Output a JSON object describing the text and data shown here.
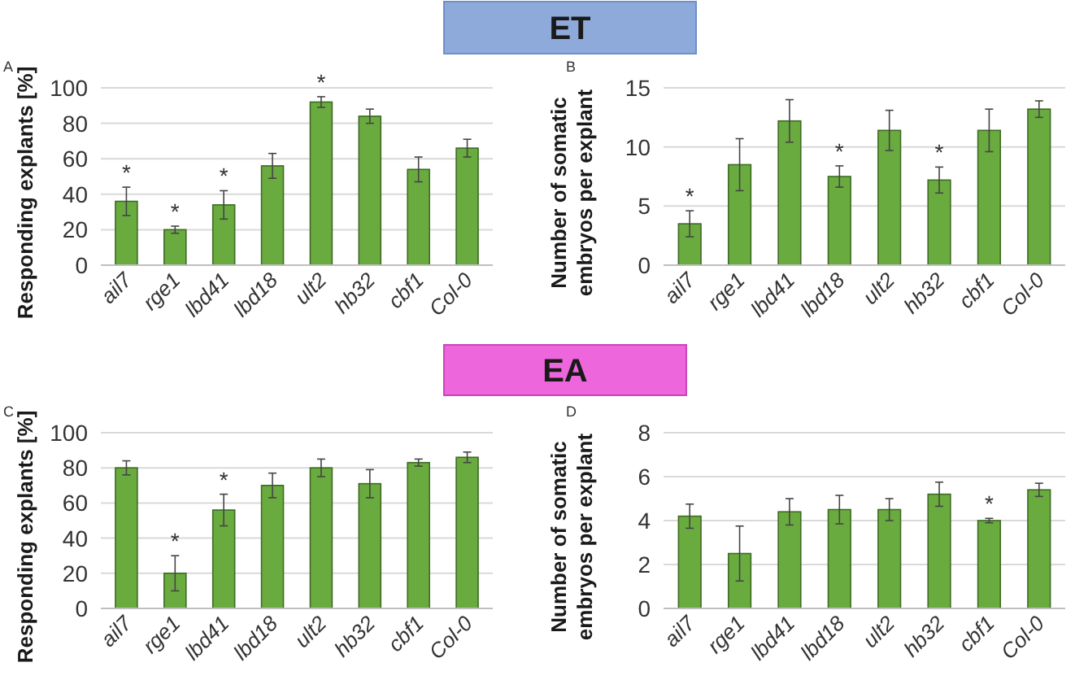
{
  "chart_data": [
    {
      "type": "other",
      "title": "ET"
    },
    {
      "type": "bar",
      "ylabel": "Responding explants [%]",
      "categories": [
        "ail7",
        "rge1",
        "lbd41",
        "lbd18",
        "ult2",
        "hb32",
        "cbf1",
        "Col-0"
      ],
      "values": [
        36,
        20,
        34,
        56,
        92,
        84,
        54,
        66
      ],
      "errors": [
        8,
        2,
        8,
        7,
        3,
        4,
        7,
        5
      ],
      "color": "#6aab3f",
      "ylim": [
        0,
        100
      ],
      "yticks": [
        0,
        20,
        40,
        60,
        80,
        100
      ],
      "grid": "y",
      "annotations": [
        "A",
        {
          "text": "*",
          "x": "ail7",
          "y": 44
        },
        {
          "text": "*",
          "x": "rge1",
          "y": 22
        },
        {
          "text": "*",
          "x": "lbd41",
          "y": 42
        },
        {
          "text": "*",
          "x": "ult2",
          "y": 95
        }
      ]
    },
    {
      "type": "bar",
      "ylabel": "Number of somatic embryos per explant",
      "categories": [
        "ail7",
        "rge1",
        "lbd41",
        "lbd18",
        "ult2",
        "hb32",
        "cbf1",
        "Col-0"
      ],
      "values": [
        3.5,
        8.5,
        12.2,
        7.5,
        11.4,
        7.2,
        11.4,
        13.2
      ],
      "errors": [
        1.1,
        2.2,
        1.8,
        0.9,
        1.7,
        1.1,
        1.8,
        0.7
      ],
      "color": "#6aab3f",
      "ylim": [
        0,
        15
      ],
      "yticks": [
        0,
        5,
        10,
        15
      ],
      "grid": "y",
      "annotations": [
        "B",
        {
          "text": "*",
          "x": "ail7",
          "y": 4.6
        },
        {
          "text": "*",
          "x": "lbd18",
          "y": 8.4
        },
        {
          "text": "*",
          "x": "hb32",
          "y": 8.3
        }
      ]
    },
    {
      "type": "other",
      "title": "EA"
    },
    {
      "type": "bar",
      "ylabel": "Responding explants [%]",
      "categories": [
        "ail7",
        "rge1",
        "lbd41",
        "lbd18",
        "ult2",
        "hb32",
        "cbf1",
        "Col-0"
      ],
      "values": [
        80,
        20,
        56,
        70,
        80,
        71,
        83,
        86
      ],
      "errors": [
        4,
        10,
        9,
        7,
        5,
        8,
        2,
        3
      ],
      "color": "#6aab3f",
      "ylim": [
        0,
        100
      ],
      "yticks": [
        0,
        20,
        40,
        60,
        80,
        100
      ],
      "grid": "y",
      "annotations": [
        "C",
        {
          "text": "*",
          "x": "rge1",
          "y": 30
        },
        {
          "text": "*",
          "x": "lbd41",
          "y": 65
        }
      ]
    },
    {
      "type": "bar",
      "ylabel": "Number of somatic embryos per explant",
      "categories": [
        "ail7",
        "rge1",
        "lbd41",
        "lbd18",
        "ult2",
        "hb32",
        "cbf1",
        "Col-0"
      ],
      "values": [
        4.2,
        2.5,
        4.4,
        4.5,
        4.5,
        5.2,
        4.0,
        5.4
      ],
      "errors": [
        0.55,
        1.25,
        0.6,
        0.65,
        0.5,
        0.55,
        0.1,
        0.3
      ],
      "color": "#6aab3f",
      "ylim": [
        0,
        8
      ],
      "yticks": [
        0,
        2,
        4,
        6,
        8
      ],
      "grid": "y",
      "annotations": [
        "D",
        {
          "text": "*",
          "x": "cbf1",
          "y": 4.1
        }
      ]
    }
  ]
}
